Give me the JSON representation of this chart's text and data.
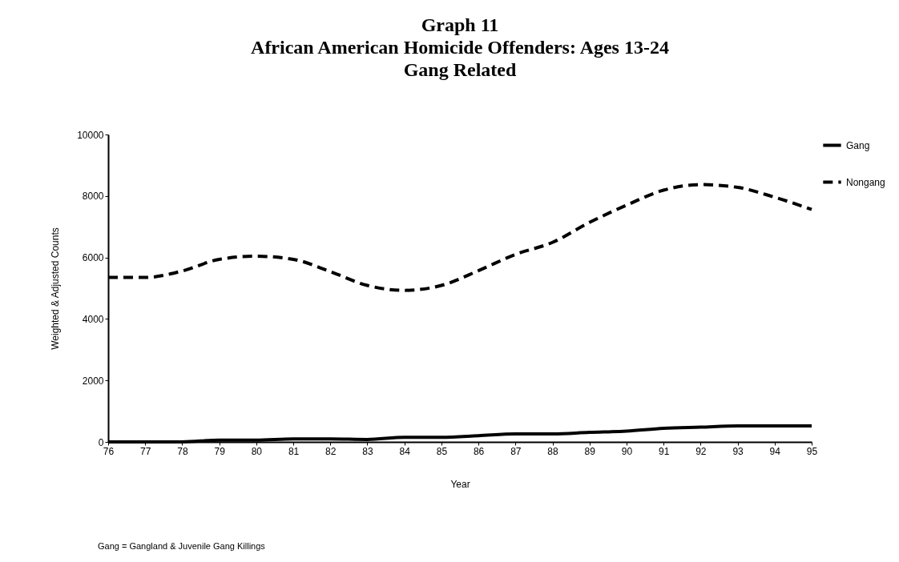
{
  "chart_data": {
    "type": "line",
    "title": "Graph 11\nAfrican American Homicide Offenders: Ages 13-24\nGang Related",
    "xlabel": "Year",
    "ylabel": "Weighted & Adjusted Counts",
    "categories": [
      "76",
      "77",
      "78",
      "79",
      "80",
      "81",
      "82",
      "83",
      "84",
      "85",
      "86",
      "87",
      "88",
      "89",
      "90",
      "91",
      "92",
      "93",
      "94",
      "95"
    ],
    "series": [
      {
        "name": "Gang",
        "color": "#000000",
        "line_style": "solid",
        "values": [
          0,
          0,
          0,
          60,
          60,
          100,
          100,
          80,
          150,
          150,
          200,
          260,
          260,
          310,
          350,
          440,
          480,
          520,
          520,
          520
        ]
      },
      {
        "name": "Nongang",
        "color": "#000000",
        "line_style": "dashed",
        "values": [
          5350,
          5350,
          5560,
          5940,
          6040,
          5940,
          5540,
          5090,
          4930,
          5090,
          5570,
          6100,
          6490,
          7140,
          7700,
          8190,
          8370,
          8280,
          7960,
          7560
        ]
      }
    ],
    "ylim": [
      0,
      10000
    ],
    "yticks": [
      0,
      2000,
      4000,
      6000,
      8000,
      10000
    ],
    "grid": false,
    "legend": "right",
    "marker": "none",
    "annotations": [
      "Gang = Gangland & Juvenile Gang Killings"
    ]
  }
}
